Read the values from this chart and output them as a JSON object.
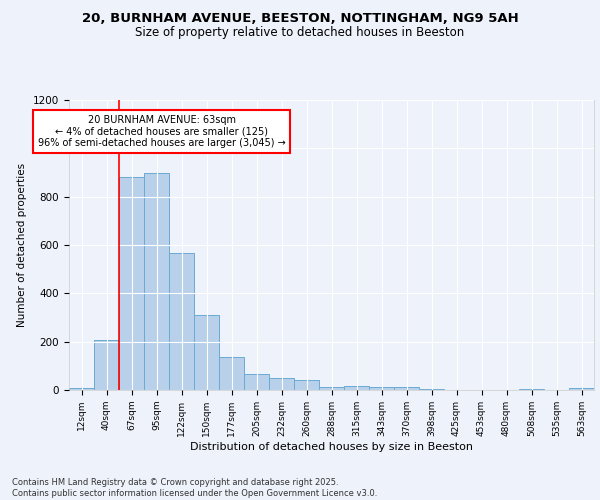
{
  "title1": "20, BURNHAM AVENUE, BEESTON, NOTTINGHAM, NG9 5AH",
  "title2": "Size of property relative to detached houses in Beeston",
  "xlabel": "Distribution of detached houses by size in Beeston",
  "ylabel": "Number of detached properties",
  "bar_labels": [
    "12sqm",
    "40sqm",
    "67sqm",
    "95sqm",
    "122sqm",
    "150sqm",
    "177sqm",
    "205sqm",
    "232sqm",
    "260sqm",
    "288sqm",
    "315sqm",
    "343sqm",
    "370sqm",
    "398sqm",
    "425sqm",
    "453sqm",
    "480sqm",
    "508sqm",
    "535sqm",
    "563sqm"
  ],
  "bar_values": [
    10,
    205,
    880,
    900,
    565,
    310,
    135,
    65,
    48,
    42,
    12,
    18,
    14,
    13,
    5,
    0,
    0,
    0,
    5,
    0,
    10
  ],
  "bar_color": "#b8d0ea",
  "bar_edge_color": "#6aaad4",
  "annotation_text": "20 BURNHAM AVENUE: 63sqm\n← 4% of detached houses are smaller (125)\n96% of semi-detached houses are larger (3,045) →",
  "annotation_box_color": "white",
  "annotation_box_edge_color": "red",
  "red_line_color": "red",
  "footer_text": "Contains HM Land Registry data © Crown copyright and database right 2025.\nContains public sector information licensed under the Open Government Licence v3.0.",
  "background_color": "#eef2fa",
  "grid_color": "white",
  "ylim": [
    0,
    1200
  ],
  "yticks": [
    0,
    200,
    400,
    600,
    800,
    1000,
    1200
  ]
}
